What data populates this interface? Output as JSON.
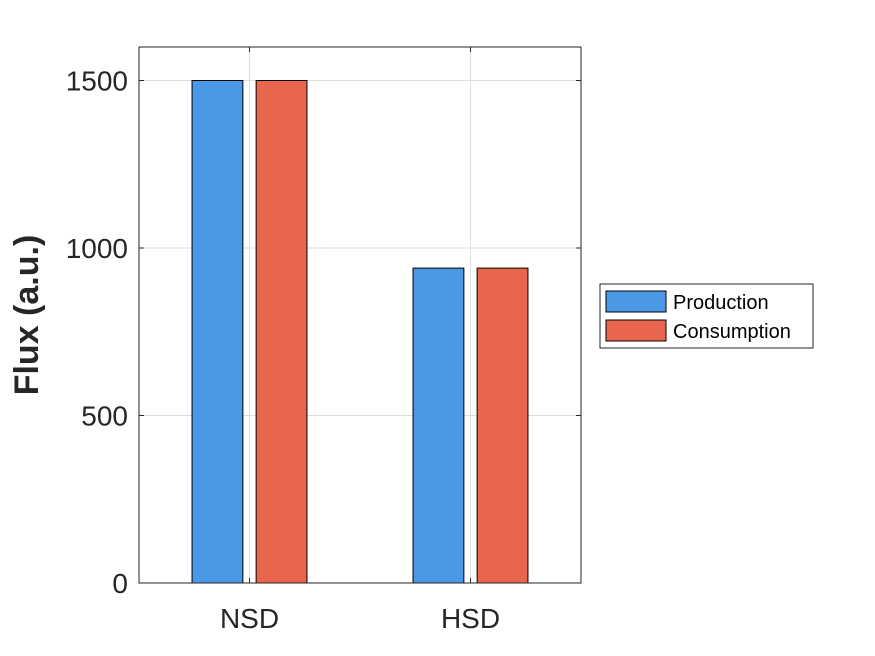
{
  "chart_data": {
    "type": "bar",
    "title": "",
    "xlabel": "",
    "ylabel": "Flux (a.u.)",
    "categories": [
      "NSD",
      "HSD"
    ],
    "series": [
      {
        "name": "Production",
        "values": [
          1500,
          940
        ],
        "color": "#4A98E6"
      },
      {
        "name": "Consumption",
        "values": [
          1500,
          940
        ],
        "color": "#E8664E"
      }
    ],
    "ylim": [
      0,
      1600
    ],
    "yticks": [
      0,
      500,
      1000,
      1500
    ],
    "grid": true,
    "legend_placement": "outside-right"
  }
}
